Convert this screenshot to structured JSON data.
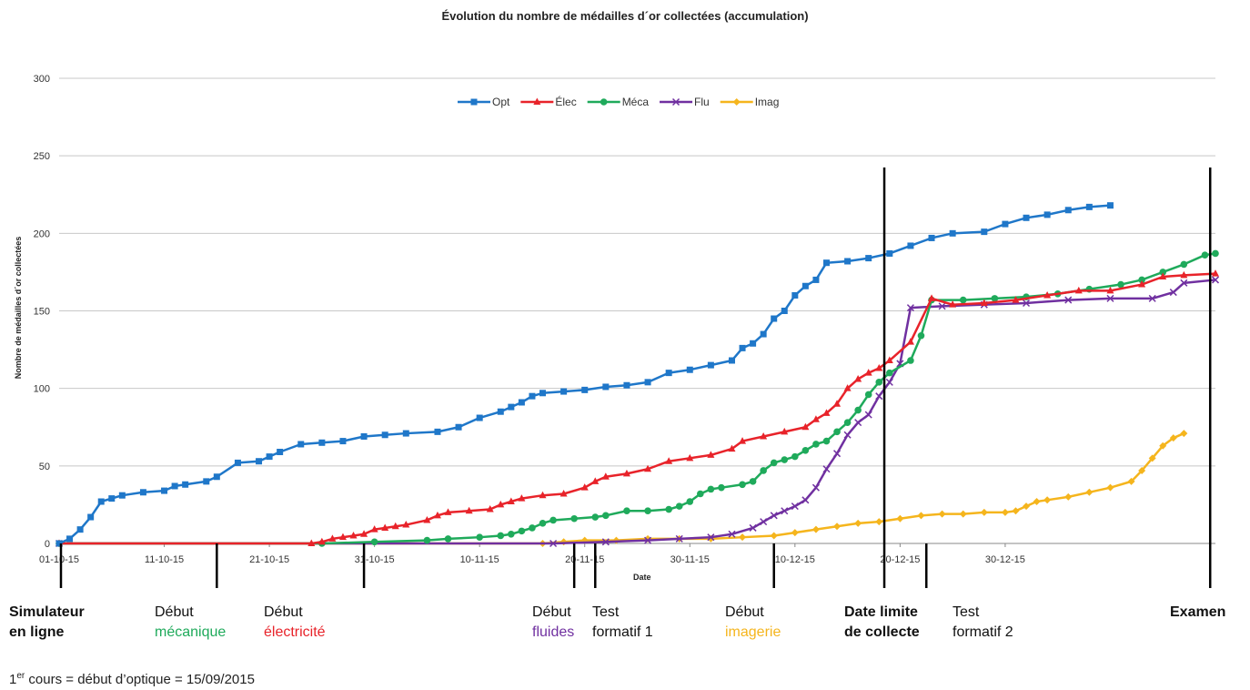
{
  "chart_data": {
    "type": "line",
    "title": "Évolution du nombre de médailles d´or collectées (accumulation)",
    "xlabel": "Date",
    "ylabel": "Nombre de médailles d´or collectées",
    "ylim": [
      0,
      300
    ],
    "yticks": [
      0,
      50,
      100,
      150,
      200,
      250,
      300
    ],
    "xticks": [
      "01-10-15",
      "11-10-15",
      "21-10-15",
      "31-10-15",
      "10-11-15",
      "20-11-15",
      "30-11-15",
      "10-12-15",
      "20-12-15",
      "30-12-15"
    ],
    "x_start_label": "01-10-15",
    "x_day_count": 99,
    "grid": true,
    "legend_position": "top-center",
    "series": [
      {
        "name": "Opt",
        "color": "#1f77c9",
        "marker": "square",
        "points": [
          [
            0,
            0
          ],
          [
            2,
            3
          ],
          [
            4,
            9
          ],
          [
            6,
            17
          ],
          [
            8,
            27
          ],
          [
            10,
            29
          ],
          [
            12,
            31
          ],
          [
            16,
            33
          ],
          [
            20,
            34
          ],
          [
            22,
            37
          ],
          [
            24,
            38
          ],
          [
            28,
            40
          ],
          [
            30,
            43
          ],
          [
            34,
            52
          ],
          [
            38,
            53
          ],
          [
            40,
            56
          ],
          [
            42,
            59
          ],
          [
            46,
            64
          ],
          [
            50,
            65
          ],
          [
            54,
            66
          ],
          [
            58,
            69
          ],
          [
            62,
            70
          ],
          [
            66,
            71
          ],
          [
            72,
            72
          ],
          [
            76,
            75
          ],
          [
            80,
            81
          ],
          [
            84,
            85
          ],
          [
            86,
            88
          ],
          [
            88,
            91
          ],
          [
            90,
            95
          ],
          [
            92,
            97
          ],
          [
            96,
            98
          ],
          [
            100,
            99
          ],
          [
            104,
            101
          ],
          [
            108,
            102
          ],
          [
            112,
            104
          ],
          [
            116,
            110
          ],
          [
            120,
            112
          ],
          [
            124,
            115
          ],
          [
            128,
            118
          ],
          [
            130,
            126
          ],
          [
            132,
            129
          ],
          [
            134,
            135
          ],
          [
            136,
            145
          ],
          [
            138,
            150
          ],
          [
            140,
            160
          ],
          [
            142,
            166
          ],
          [
            144,
            170
          ],
          [
            146,
            181
          ],
          [
            150,
            182
          ],
          [
            154,
            184
          ],
          [
            158,
            187
          ],
          [
            162,
            192
          ],
          [
            166,
            197
          ],
          [
            170,
            200
          ],
          [
            176,
            201
          ],
          [
            180,
            206
          ],
          [
            184,
            210
          ],
          [
            188,
            212
          ],
          [
            192,
            215
          ],
          [
            196,
            217
          ],
          [
            200,
            218
          ]
        ]
      },
      {
        "name": "Élec",
        "color": "#e8232a",
        "marker": "triangle",
        "points": [
          [
            0,
            0
          ],
          [
            48,
            0
          ],
          [
            50,
            1
          ],
          [
            52,
            3
          ],
          [
            54,
            4
          ],
          [
            56,
            5
          ],
          [
            58,
            6
          ],
          [
            60,
            9
          ],
          [
            62,
            10
          ],
          [
            64,
            11
          ],
          [
            66,
            12
          ],
          [
            70,
            15
          ],
          [
            72,
            18
          ],
          [
            74,
            20
          ],
          [
            78,
            21
          ],
          [
            82,
            22
          ],
          [
            84,
            25
          ],
          [
            86,
            27
          ],
          [
            88,
            29
          ],
          [
            92,
            31
          ],
          [
            96,
            32
          ],
          [
            100,
            36
          ],
          [
            102,
            40
          ],
          [
            104,
            43
          ],
          [
            108,
            45
          ],
          [
            112,
            48
          ],
          [
            116,
            53
          ],
          [
            120,
            55
          ],
          [
            124,
            57
          ],
          [
            128,
            61
          ],
          [
            130,
            66
          ],
          [
            134,
            69
          ],
          [
            138,
            72
          ],
          [
            142,
            75
          ],
          [
            144,
            80
          ],
          [
            146,
            84
          ],
          [
            148,
            90
          ],
          [
            150,
            100
          ],
          [
            152,
            106
          ],
          [
            154,
            110
          ],
          [
            156,
            113
          ],
          [
            158,
            118
          ],
          [
            162,
            130
          ],
          [
            166,
            158
          ],
          [
            170,
            154
          ],
          [
            176,
            155
          ],
          [
            182,
            157
          ],
          [
            188,
            160
          ],
          [
            194,
            163
          ],
          [
            200,
            163
          ],
          [
            206,
            167
          ],
          [
            210,
            172
          ],
          [
            214,
            173
          ],
          [
            220,
            174
          ]
        ]
      },
      {
        "name": "Méca",
        "color": "#1faa5b",
        "marker": "circle",
        "points": [
          [
            0,
            0
          ],
          [
            50,
            0
          ],
          [
            60,
            1
          ],
          [
            70,
            2
          ],
          [
            74,
            3
          ],
          [
            80,
            4
          ],
          [
            84,
            5
          ],
          [
            86,
            6
          ],
          [
            88,
            8
          ],
          [
            90,
            10
          ],
          [
            92,
            13
          ],
          [
            94,
            15
          ],
          [
            98,
            16
          ],
          [
            102,
            17
          ],
          [
            104,
            18
          ],
          [
            108,
            21
          ],
          [
            112,
            21
          ],
          [
            116,
            22
          ],
          [
            118,
            24
          ],
          [
            120,
            27
          ],
          [
            122,
            32
          ],
          [
            124,
            35
          ],
          [
            126,
            36
          ],
          [
            130,
            38
          ],
          [
            132,
            40
          ],
          [
            134,
            47
          ],
          [
            136,
            52
          ],
          [
            138,
            54
          ],
          [
            140,
            56
          ],
          [
            142,
            60
          ],
          [
            144,
            64
          ],
          [
            146,
            66
          ],
          [
            148,
            72
          ],
          [
            150,
            78
          ],
          [
            152,
            86
          ],
          [
            154,
            96
          ],
          [
            156,
            104
          ],
          [
            158,
            110
          ],
          [
            162,
            118
          ],
          [
            164,
            134
          ],
          [
            166,
            157
          ],
          [
            172,
            157
          ],
          [
            178,
            158
          ],
          [
            184,
            159
          ],
          [
            190,
            161
          ],
          [
            196,
            164
          ],
          [
            202,
            167
          ],
          [
            206,
            170
          ],
          [
            210,
            175
          ],
          [
            214,
            180
          ],
          [
            218,
            186
          ],
          [
            220,
            187
          ]
        ]
      },
      {
        "name": "Flu",
        "color": "#7030a0",
        "marker": "x",
        "points": [
          [
            0,
            0
          ],
          [
            94,
            0
          ],
          [
            104,
            1
          ],
          [
            112,
            2
          ],
          [
            118,
            3
          ],
          [
            124,
            4
          ],
          [
            128,
            6
          ],
          [
            132,
            10
          ],
          [
            134,
            14
          ],
          [
            136,
            18
          ],
          [
            138,
            21
          ],
          [
            140,
            24
          ],
          [
            142,
            28
          ],
          [
            144,
            36
          ],
          [
            146,
            48
          ],
          [
            148,
            58
          ],
          [
            150,
            70
          ],
          [
            152,
            78
          ],
          [
            154,
            83
          ],
          [
            156,
            95
          ],
          [
            158,
            104
          ],
          [
            160,
            116
          ],
          [
            162,
            152
          ],
          [
            168,
            153
          ],
          [
            176,
            154
          ],
          [
            184,
            155
          ],
          [
            192,
            157
          ],
          [
            200,
            158
          ],
          [
            208,
            158
          ],
          [
            212,
            162
          ],
          [
            214,
            168
          ],
          [
            220,
            170
          ]
        ]
      },
      {
        "name": "Imag",
        "color": "#f5b51d",
        "marker": "diamond",
        "points": [
          [
            0,
            0
          ],
          [
            92,
            0
          ],
          [
            96,
            1
          ],
          [
            100,
            2
          ],
          [
            106,
            2
          ],
          [
            112,
            3
          ],
          [
            118,
            3
          ],
          [
            124,
            3
          ],
          [
            130,
            4
          ],
          [
            136,
            5
          ],
          [
            140,
            7
          ],
          [
            144,
            9
          ],
          [
            148,
            11
          ],
          [
            152,
            13
          ],
          [
            156,
            14
          ],
          [
            160,
            16
          ],
          [
            164,
            18
          ],
          [
            168,
            19
          ],
          [
            172,
            19
          ],
          [
            176,
            20
          ],
          [
            180,
            20
          ],
          [
            182,
            21
          ],
          [
            184,
            24
          ],
          [
            186,
            27
          ],
          [
            188,
            28
          ],
          [
            192,
            30
          ],
          [
            196,
            33
          ],
          [
            200,
            36
          ],
          [
            204,
            40
          ],
          [
            206,
            47
          ],
          [
            208,
            55
          ],
          [
            210,
            63
          ],
          [
            212,
            68
          ],
          [
            214,
            71
          ]
        ]
      }
    ],
    "x_scale_max": 220,
    "vlines": [
      {
        "x": 0,
        "height": "short"
      },
      {
        "x": 30,
        "height": "short"
      },
      {
        "x": 58,
        "height": "short"
      },
      {
        "x": 98,
        "height": "short"
      },
      {
        "x": 102,
        "height": "short"
      },
      {
        "x": 136,
        "height": "short"
      },
      {
        "x": 157,
        "height": "tall"
      },
      {
        "x": 165,
        "height": "short"
      },
      {
        "x": 219,
        "height": "tall"
      }
    ]
  },
  "annotations": [
    {
      "line1": "Simulateur",
      "line2": "en ligne",
      "color1": "#111111",
      "color2": "#111111",
      "bold": true
    },
    {
      "line1": "Début",
      "line2": "mécanique",
      "color1": "#111111",
      "color2": "#1faa5b",
      "bold": false
    },
    {
      "line1": "Début",
      "line2": "électricité",
      "color1": "#111111",
      "color2": "#e8232a",
      "bold": false
    },
    {
      "line1": "Début",
      "line2": "fluides",
      "color1": "#111111",
      "color2": "#7030a0",
      "bold": false
    },
    {
      "line1": "Test",
      "line2": "formatif 1",
      "color1": "#111111",
      "color2": "#111111",
      "bold": false
    },
    {
      "line1": "Début",
      "line2": "imagerie",
      "color1": "#111111",
      "color2": "#f5b51d",
      "bold": false
    },
    {
      "line1": "Date limite",
      "line2": "de collecte",
      "color1": "#111111",
      "color2": "#111111",
      "bold": true
    },
    {
      "line1": "Test",
      "line2": "formatif 2",
      "color1": "#111111",
      "color2": "#111111",
      "bold": false
    },
    {
      "line1": "Examen",
      "line2": "",
      "color1": "#111111",
      "color2": "#111111",
      "bold": true
    }
  ],
  "footnote": {
    "pre": "1",
    "sup": "er",
    "post": " cours = début d’optique = 15/09/2015"
  }
}
